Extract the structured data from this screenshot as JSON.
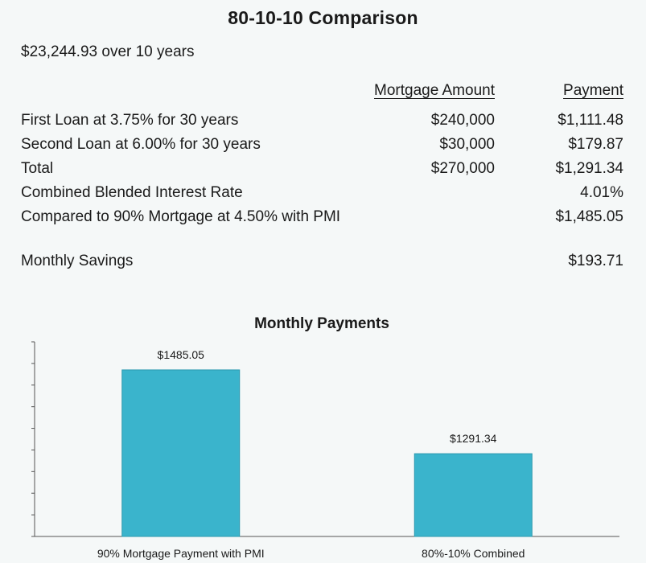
{
  "title": "80-10-10 Comparison",
  "summary": "$23,244.93 over 10 years",
  "table": {
    "headers": {
      "amount": "Mortgage Amount",
      "payment": "Payment"
    },
    "rows": [
      {
        "label": "First Loan at 3.75% for 30 years",
        "amount": "$240,000",
        "payment": "$1,111.48"
      },
      {
        "label": "Second Loan at 6.00% for 30 years",
        "amount": "$30,000",
        "payment": "$179.87"
      },
      {
        "label": "Total",
        "amount": "$270,000",
        "payment": "$1,291.34"
      },
      {
        "label": "Combined Blended Interest Rate",
        "amount": "",
        "payment": "4.01%"
      },
      {
        "label": "Compared to 90% Mortgage at 4.50% with PMI",
        "amount": "",
        "payment": "$1,485.05"
      }
    ],
    "savings": {
      "label": "Monthly Savings",
      "payment": "$193.71"
    }
  },
  "chart_data": {
    "type": "bar",
    "title": "Monthly Payments",
    "categories": [
      "90% Mortgage Payment with PMI",
      "80%-10% Combined"
    ],
    "values": [
      1485.05,
      1291.34
    ],
    "data_labels": [
      "$1485.05",
      "$1291.34"
    ],
    "ylim": [
      1100,
      1550
    ],
    "bar_color": "#3ab4cc",
    "grid": false,
    "xlabel": "",
    "ylabel": ""
  }
}
